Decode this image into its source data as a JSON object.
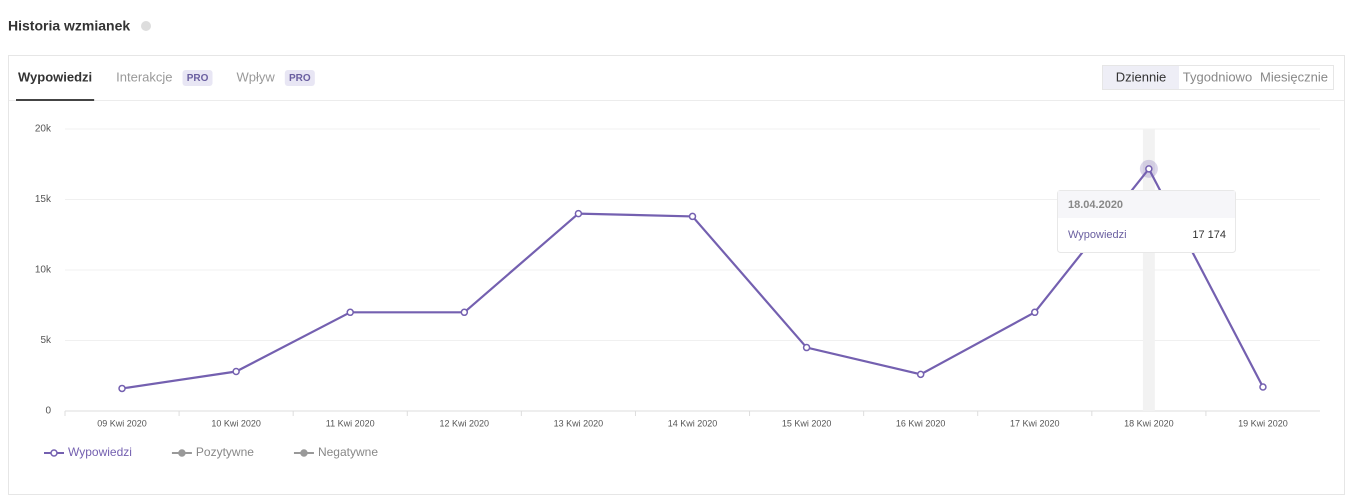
{
  "header": {
    "title": "Historia wzmianek"
  },
  "tabs": [
    {
      "label": "Wypowiedzi"
    },
    {
      "label": "Interakcje",
      "badge": "PRO"
    },
    {
      "label": "Wpływ",
      "badge": "PRO"
    }
  ],
  "periods": [
    "Dziennie",
    "Tygodniowo",
    "Miesięcznie"
  ],
  "tooltip": {
    "title": "18.04.2020",
    "value": "17 174"
  },
  "chart_data": {
    "type": "line",
    "categories": [
      "09 Kwi 2020",
      "10 Kwi 2020",
      "11 Kwi 2020",
      "12 Kwi 2020",
      "13 Kwi 2020",
      "14 Kwi 2020",
      "15 Kwi 2020",
      "16 Kwi 2020",
      "17 Kwi 2020",
      "18 Kwi 2020",
      "19 Kwi 2020"
    ],
    "series": [
      {
        "name": "Wypowiedzi",
        "color": "#7460b0",
        "values": [
          1600,
          2800,
          7000,
          7000,
          14000,
          13800,
          4500,
          2600,
          7000,
          17174,
          1700
        ]
      },
      {
        "name": "Pozytywne",
        "color": "#999999",
        "values": [
          null,
          null,
          null,
          null,
          null,
          null,
          null,
          null,
          null,
          null,
          null
        ]
      },
      {
        "name": "Negatywne",
        "color": "#999999",
        "values": [
          null,
          null,
          null,
          null,
          null,
          null,
          null,
          null,
          null,
          null,
          null
        ]
      }
    ],
    "ylim": [
      0,
      20000
    ],
    "yticks": [
      0,
      {
        "value": 5000,
        "label": "5k"
      },
      {
        "value": 10000,
        "label": "10k"
      },
      {
        "value": 15000,
        "label": "15k"
      },
      {
        "value": 20000,
        "label": "20k"
      }
    ],
    "grid": true
  }
}
